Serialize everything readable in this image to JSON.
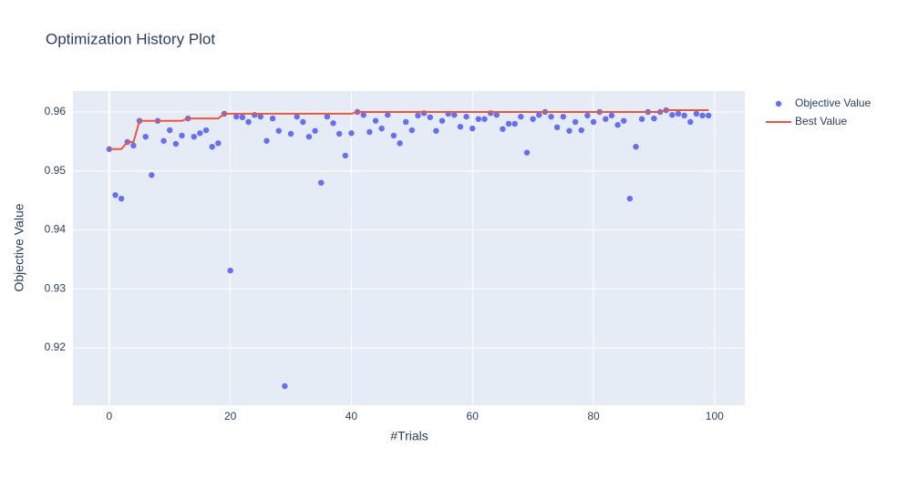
{
  "chart_data": {
    "type": "scatter",
    "title": "Optimization History Plot",
    "x_label": "#Trials",
    "y_label": "Objective Value",
    "x": [
      0,
      1,
      2,
      3,
      4,
      5,
      6,
      7,
      8,
      9,
      10,
      11,
      12,
      13,
      14,
      15,
      16,
      17,
      18,
      19,
      20,
      21,
      22,
      23,
      24,
      25,
      26,
      27,
      28,
      29,
      30,
      31,
      32,
      33,
      34,
      35,
      36,
      37,
      38,
      39,
      40,
      41,
      42,
      43,
      44,
      45,
      46,
      47,
      48,
      49,
      50,
      51,
      52,
      53,
      54,
      55,
      56,
      57,
      58,
      59,
      60,
      61,
      62,
      63,
      64,
      65,
      66,
      67,
      68,
      69,
      70,
      71,
      72,
      73,
      74,
      75,
      76,
      77,
      78,
      79,
      80,
      81,
      82,
      83,
      84,
      85,
      86,
      87,
      88,
      89,
      90,
      91,
      92,
      93,
      94,
      95,
      96,
      97,
      98,
      99
    ],
    "series": [
      {
        "name": "Objective Value",
        "color": "#636efa",
        "mode": "markers",
        "values": [
          0.9537,
          0.9459,
          0.9453,
          0.9549,
          0.9543,
          0.9585,
          0.9558,
          0.9493,
          0.9585,
          0.9551,
          0.9569,
          0.9546,
          0.956,
          0.9589,
          0.9558,
          0.9564,
          0.9569,
          0.9541,
          0.9547,
          0.9597,
          0.9331,
          0.9592,
          0.9591,
          0.9583,
          0.9595,
          0.9592,
          0.9551,
          0.9589,
          0.9568,
          0.9135,
          0.9563,
          0.9592,
          0.9583,
          0.9558,
          0.9568,
          0.948,
          0.9592,
          0.9581,
          0.9563,
          0.9526,
          0.9564,
          0.96,
          0.9595,
          0.9566,
          0.9585,
          0.9572,
          0.9595,
          0.956,
          0.9547,
          0.9583,
          0.9569,
          0.9594,
          0.9598,
          0.9591,
          0.9568,
          0.9585,
          0.9597,
          0.9595,
          0.9575,
          0.9592,
          0.9572,
          0.9588,
          0.9588,
          0.9598,
          0.9595,
          0.9571,
          0.958,
          0.958,
          0.9592,
          0.9531,
          0.9588,
          0.9595,
          0.96,
          0.9592,
          0.9574,
          0.9592,
          0.9568,
          0.9583,
          0.9569,
          0.9594,
          0.9583,
          0.96,
          0.9588,
          0.9594,
          0.9578,
          0.9585,
          0.9453,
          0.9541,
          0.9588,
          0.96,
          0.9589,
          0.96,
          0.9603,
          0.9595,
          0.9597,
          0.9594,
          0.9583,
          0.9597,
          0.9594,
          0.9594
        ]
      },
      {
        "name": "Best Value",
        "color": "#ef553b",
        "mode": "lines",
        "values": [
          0.9537,
          0.9537,
          0.9537,
          0.9549,
          0.9549,
          0.9585,
          0.9585,
          0.9585,
          0.9585,
          0.9585,
          0.9585,
          0.9585,
          0.9585,
          0.9589,
          0.9589,
          0.9589,
          0.9589,
          0.9589,
          0.9589,
          0.9597,
          0.9597,
          0.9597,
          0.9597,
          0.9597,
          0.9597,
          0.9597,
          0.9597,
          0.9597,
          0.9597,
          0.9597,
          0.9597,
          0.9597,
          0.9597,
          0.9597,
          0.9597,
          0.9597,
          0.9597,
          0.9597,
          0.9597,
          0.9597,
          0.9597,
          0.96,
          0.96,
          0.96,
          0.96,
          0.96,
          0.96,
          0.96,
          0.96,
          0.96,
          0.96,
          0.96,
          0.96,
          0.96,
          0.96,
          0.96,
          0.96,
          0.96,
          0.96,
          0.96,
          0.96,
          0.96,
          0.96,
          0.96,
          0.96,
          0.96,
          0.96,
          0.96,
          0.96,
          0.96,
          0.96,
          0.96,
          0.96,
          0.96,
          0.96,
          0.96,
          0.96,
          0.96,
          0.96,
          0.96,
          0.96,
          0.96,
          0.96,
          0.96,
          0.96,
          0.96,
          0.96,
          0.96,
          0.96,
          0.96,
          0.96,
          0.96,
          0.9603,
          0.9603,
          0.9603,
          0.9603,
          0.9603,
          0.9603,
          0.9603,
          0.9603
        ]
      }
    ],
    "xlim": [
      -6,
      105
    ],
    "ylim": [
      0.91027,
      0.96355
    ],
    "xticks": [
      0,
      20,
      40,
      60,
      80,
      100
    ],
    "yticks": [
      0.92,
      0.93,
      0.94,
      0.95,
      0.96
    ],
    "grid": true,
    "background": "#e5ecf6",
    "legend": "right"
  }
}
